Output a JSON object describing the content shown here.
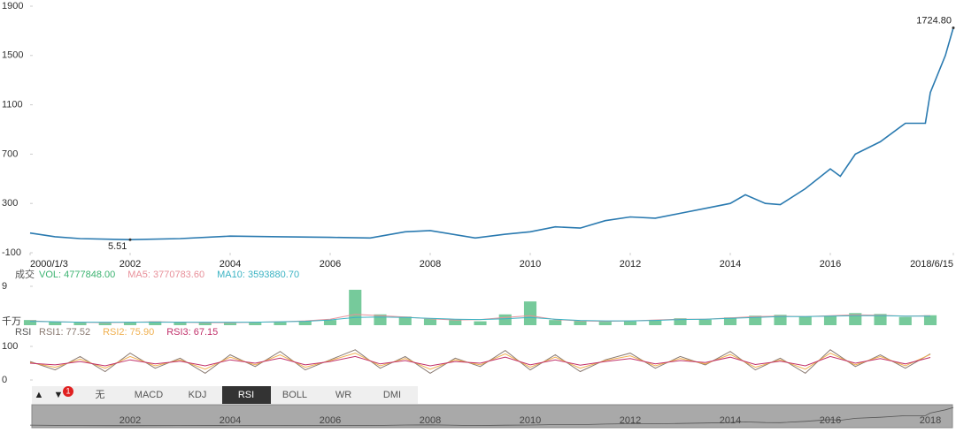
{
  "chart_data": [
    {
      "type": "line",
      "x": [
        2000,
        2000.5,
        2001,
        2002,
        2003,
        2004,
        2005,
        2006,
        2006.8,
        2007.5,
        2008,
        2008.9,
        2009.5,
        2010,
        2010.5,
        2011,
        2011.5,
        2012,
        2012.5,
        2013,
        2013.5,
        2014,
        2014.3,
        2014.7,
        2015,
        2015.5,
        2016,
        2016.2,
        2016.5,
        2017,
        2017.5,
        2017.9,
        2018,
        2018.3,
        2018.46
      ],
      "series": [
        {
          "name": "price",
          "color": "#2a7ab0",
          "values": [
            60,
            30,
            15,
            6,
            15,
            35,
            30,
            25,
            20,
            70,
            80,
            20,
            50,
            70,
            110,
            100,
            160,
            190,
            180,
            220,
            260,
            300,
            370,
            300,
            290,
            420,
            580,
            520,
            700,
            800,
            950,
            950,
            1200,
            1500,
            1724.8
          ]
        }
      ],
      "annotations": [
        {
          "label": "5.51",
          "x": 2002,
          "y": 5.51
        },
        {
          "label": "1724.80",
          "x": 2018.46,
          "y": 1724.8
        }
      ],
      "xlim": [
        2000,
        2018.46
      ],
      "xticks": [
        {
          "value": 2000,
          "label": "2000/1/3"
        },
        2002,
        2004,
        2006,
        2008,
        2010,
        2012,
        2014,
        2016,
        {
          "value": 2018.46,
          "label": "2018/6/15"
        }
      ],
      "ylim": [
        -100,
        1900
      ],
      "yticks": [
        -100,
        300,
        700,
        1100,
        1500,
        1900
      ]
    },
    {
      "type": "bar",
      "label": "成交",
      "unit": "千万",
      "x": [
        2000,
        2000.5,
        2001,
        2001.5,
        2002,
        2002.5,
        2003,
        2003.5,
        2004,
        2004.5,
        2005,
        2005.5,
        2006,
        2006.5,
        2007,
        2007.5,
        2008,
        2008.5,
        2009,
        2009.5,
        2010,
        2010.5,
        2011,
        2011.5,
        2012,
        2012.5,
        2013,
        2013.5,
        2014,
        2014.5,
        2015,
        2015.5,
        2016,
        2016.5,
        2017,
        2017.5,
        2018
      ],
      "xlim": [
        2000,
        2018.46
      ],
      "ylim": [
        0,
        9
      ],
      "yticks": [
        9
      ],
      "series": [
        {
          "name": "VOL: 4777848.00",
          "color": "#3cb371",
          "values": [
            1.2,
            0.8,
            0.6,
            0.5,
            0.7,
            0.9,
            0.8,
            0.6,
            0.5,
            0.6,
            0.7,
            0.9,
            1.2,
            8.2,
            2.5,
            2.0,
            1.5,
            1.2,
            0.9,
            2.5,
            5.5,
            1.2,
            1.0,
            0.8,
            0.9,
            1.1,
            1.6,
            1.3,
            1.8,
            2.2,
            2.4,
            2.0,
            2.1,
            2.8,
            2.6,
            1.9,
            2.3
          ]
        },
        {
          "name": "MA5: 3770783.60",
          "color": "#e8909a",
          "values": [
            1.0,
            0.8,
            0.7,
            0.6,
            0.7,
            0.8,
            0.7,
            0.6,
            0.6,
            0.7,
            0.8,
            1.0,
            1.4,
            2.5,
            2.2,
            1.9,
            1.5,
            1.2,
            1.3,
            1.8,
            2.2,
            1.3,
            1.0,
            0.9,
            1.0,
            1.2,
            1.4,
            1.4,
            1.7,
            2.0,
            2.1,
            2.0,
            2.2,
            2.4,
            2.3,
            2.1,
            2.2
          ]
        },
        {
          "name": "MA10: 3593880.70",
          "color": "#3bb3c3",
          "values": [
            0.9,
            0.8,
            0.7,
            0.7,
            0.7,
            0.7,
            0.7,
            0.7,
            0.7,
            0.7,
            0.8,
            0.9,
            1.2,
            1.8,
            1.9,
            1.8,
            1.6,
            1.4,
            1.3,
            1.5,
            1.8,
            1.4,
            1.1,
            1.0,
            1.0,
            1.1,
            1.3,
            1.4,
            1.6,
            1.8,
            2.0,
            2.0,
            2.1,
            2.2,
            2.2,
            2.1,
            2.1
          ]
        }
      ]
    },
    {
      "type": "line",
      "label": "RSI",
      "x": [
        2000,
        2000.5,
        2001,
        2001.5,
        2002,
        2002.5,
        2003,
        2003.5,
        2004,
        2004.5,
        2005,
        2005.5,
        2006,
        2006.5,
        2007,
        2007.5,
        2008,
        2008.5,
        2009,
        2009.5,
        2010,
        2010.5,
        2011,
        2011.5,
        2012,
        2012.5,
        2013,
        2013.5,
        2014,
        2014.5,
        2015,
        2015.5,
        2016,
        2016.5,
        2017,
        2017.5,
        2018
      ],
      "xlim": [
        2000,
        2018.46
      ],
      "ylim": [
        0,
        100
      ],
      "yticks": [
        0,
        100
      ],
      "series": [
        {
          "name": "RSI1: 77.52",
          "color": "#8a7a72",
          "values": [
            55,
            30,
            70,
            25,
            80,
            35,
            65,
            20,
            75,
            40,
            85,
            30,
            60,
            90,
            35,
            70,
            20,
            65,
            40,
            88,
            30,
            75,
            25,
            60,
            80,
            35,
            70,
            45,
            85,
            30,
            65,
            20,
            90,
            40,
            75,
            35,
            78
          ]
        },
        {
          "name": "RSI2: 75.90",
          "color": "#f0b050",
          "values": [
            52,
            38,
            62,
            35,
            70,
            42,
            60,
            32,
            68,
            45,
            75,
            38,
            58,
            80,
            42,
            64,
            32,
            60,
            45,
            78,
            38,
            68,
            35,
            58,
            72,
            42,
            64,
            48,
            76,
            38,
            60,
            32,
            80,
            45,
            70,
            42,
            76
          ]
        },
        {
          "name": "RSI3: 67.15",
          "color": "#c0306a",
          "values": [
            50,
            45,
            55,
            42,
            60,
            48,
            56,
            42,
            60,
            50,
            65,
            45,
            55,
            70,
            48,
            58,
            42,
            55,
            50,
            68,
            45,
            60,
            44,
            55,
            64,
            48,
            58,
            52,
            68,
            46,
            56,
            42,
            70,
            50,
            64,
            48,
            67
          ]
        }
      ]
    },
    {
      "type": "navigator",
      "xlim": [
        2000,
        2018.46
      ],
      "xticks": [
        2002,
        2004,
        2006,
        2008,
        2010,
        2012,
        2014,
        2016,
        2018
      ]
    }
  ],
  "toolbar": {
    "up": "▲",
    "down": "▼",
    "badge": "1",
    "tabs": [
      "无",
      "MACD",
      "KDJ",
      "RSI",
      "BOLL",
      "WR",
      "DMI"
    ],
    "active_tab": "RSI"
  }
}
